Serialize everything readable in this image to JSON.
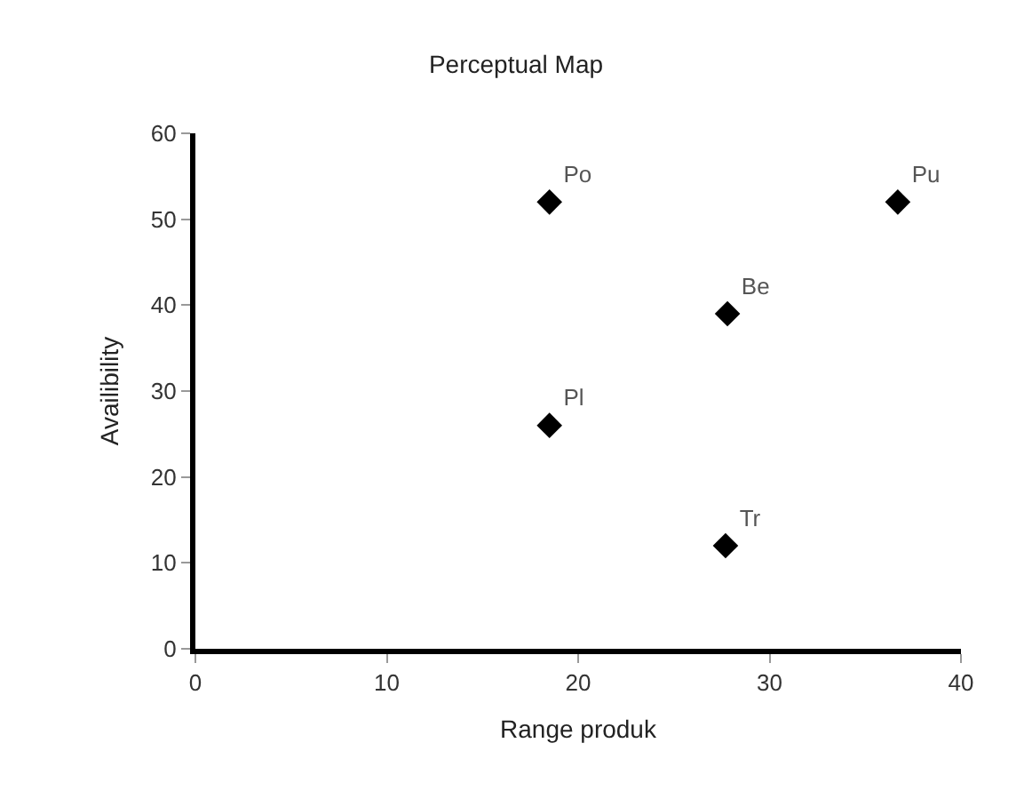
{
  "chart_data": {
    "type": "scatter",
    "title": "Perceptual Map",
    "xlabel": "Range produk",
    "ylabel": "Availibility",
    "x": [
      18.5,
      36.7,
      27.8,
      18.5,
      27.7
    ],
    "series": [
      {
        "color": "#000000",
        "values": [
          52,
          52,
          39,
          26,
          12
        ],
        "value_labels": [
          "Po",
          "Pu",
          "Be",
          "Pl",
          "Tr"
        ]
      }
    ],
    "xlim": [
      0,
      40
    ],
    "xticks": [
      0,
      10,
      20,
      30,
      40
    ],
    "ylim": [
      0,
      60
    ],
    "yticks": [
      0,
      10,
      20,
      30,
      40,
      50,
      60
    ],
    "grid": false,
    "legend": false,
    "marker": "diamond"
  }
}
